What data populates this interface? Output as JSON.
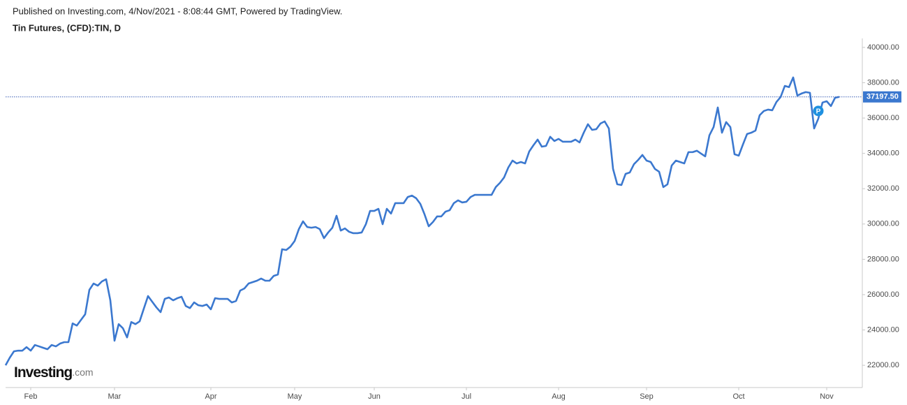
{
  "header": {
    "published": "Published on Investing.com, 4/Nov/2021 - 8:08:44 GMT, Powered by TradingView."
  },
  "logo": {
    "name": "Investing",
    "suffix": ".com"
  },
  "chart_data": {
    "type": "line",
    "title": "Tin Futures, (CFD):TIN, D",
    "color": "#3b78cf",
    "grid": false,
    "ylim": [
      20740,
      40510
    ],
    "yticks": [
      {
        "value": 22000,
        "label": "22000.00"
      },
      {
        "value": 24000,
        "label": "24000.00"
      },
      {
        "value": 26000,
        "label": "26000.00"
      },
      {
        "value": 28000,
        "label": "28000.00"
      },
      {
        "value": 30000,
        "label": "30000.00"
      },
      {
        "value": 32000,
        "label": "32000.00"
      },
      {
        "value": 34000,
        "label": "34000.00"
      },
      {
        "value": 36000,
        "label": "36000.00"
      },
      {
        "value": 38000,
        "label": "38000.00"
      },
      {
        "value": 40000,
        "label": "40000.00"
      }
    ],
    "last_price": {
      "value": 37197.5,
      "label": "37197.50"
    },
    "marker": {
      "index": 194,
      "label": "P"
    },
    "categories": [
      null,
      null,
      null,
      null,
      null,
      null,
      "Feb",
      null,
      null,
      null,
      null,
      null,
      null,
      null,
      null,
      null,
      null,
      null,
      null,
      null,
      null,
      null,
      null,
      null,
      null,
      null,
      "Mar",
      null,
      null,
      null,
      null,
      null,
      null,
      null,
      null,
      null,
      null,
      null,
      null,
      null,
      null,
      null,
      null,
      null,
      null,
      null,
      null,
      null,
      null,
      "Apr",
      null,
      null,
      null,
      null,
      null,
      null,
      null,
      null,
      null,
      null,
      null,
      null,
      null,
      null,
      null,
      null,
      null,
      null,
      null,
      "May",
      null,
      null,
      null,
      null,
      null,
      null,
      null,
      null,
      null,
      null,
      null,
      null,
      null,
      null,
      null,
      null,
      null,
      null,
      "Jun",
      null,
      null,
      null,
      null,
      null,
      null,
      null,
      null,
      null,
      null,
      null,
      null,
      null,
      null,
      null,
      null,
      null,
      null,
      null,
      null,
      null,
      "Jul",
      null,
      null,
      null,
      null,
      null,
      null,
      null,
      null,
      null,
      null,
      null,
      null,
      null,
      null,
      null,
      null,
      null,
      null,
      null,
      null,
      null,
      "Aug",
      null,
      null,
      null,
      null,
      null,
      null,
      null,
      null,
      null,
      null,
      null,
      null,
      null,
      null,
      null,
      null,
      null,
      null,
      null,
      null,
      "Sep",
      null,
      null,
      null,
      null,
      null,
      null,
      null,
      null,
      null,
      null,
      null,
      null,
      null,
      null,
      null,
      null,
      null,
      null,
      null,
      null,
      null,
      "Oct",
      null,
      null,
      null,
      null,
      null,
      null,
      null,
      null,
      null,
      null,
      null,
      null,
      null,
      null,
      null,
      null,
      null,
      null,
      null,
      null,
      "Nov",
      null,
      null,
      null
    ],
    "values": [
      22000,
      22430,
      22790,
      22830,
      22830,
      23030,
      22830,
      23150,
      23070,
      22990,
      22910,
      23150,
      23070,
      23230,
      23310,
      23310,
      24370,
      24250,
      24570,
      24890,
      26270,
      26630,
      26510,
      26750,
      26870,
      25680,
      23390,
      24330,
      24100,
      23580,
      24450,
      24330,
      24490,
      25210,
      25920,
      25600,
      25280,
      25010,
      25760,
      25840,
      25680,
      25800,
      25880,
      25360,
      25240,
      25560,
      25400,
      25360,
      25440,
      25170,
      25800,
      25760,
      25760,
      25760,
      25560,
      25640,
      26230,
      26350,
      26630,
      26710,
      26790,
      26910,
      26790,
      26790,
      27060,
      27140,
      28570,
      28530,
      28720,
      29040,
      29710,
      30150,
      29830,
      29790,
      29830,
      29710,
      29200,
      29520,
      29790,
      30470,
      29630,
      29750,
      29560,
      29480,
      29480,
      29520,
      29990,
      30740,
      30740,
      30860,
      29990,
      30860,
      30590,
      31180,
      31180,
      31180,
      31530,
      31610,
      31460,
      31140,
      30550,
      29870,
      30110,
      30430,
      30430,
      30700,
      30780,
      31180,
      31340,
      31220,
      31260,
      31530,
      31650,
      31650,
      31650,
      31650,
      31650,
      32090,
      32330,
      32640,
      33200,
      33590,
      33430,
      33510,
      33430,
      34110,
      34460,
      34780,
      34380,
      34420,
      34940,
      34700,
      34820,
      34660,
      34660,
      34660,
      34780,
      34620,
      35170,
      35650,
      35330,
      35370,
      35690,
      35810,
      35410,
      33120,
      32250,
      32210,
      32840,
      32920,
      33390,
      33630,
      33910,
      33590,
      33510,
      33120,
      32960,
      32090,
      32250,
      33310,
      33590,
      33510,
      33430,
      34070,
      34070,
      34150,
      33990,
      33830,
      35020,
      35490,
      36600,
      35170,
      35770,
      35490,
      33950,
      33870,
      34500,
      35100,
      35170,
      35290,
      36160,
      36400,
      36480,
      36440,
      36910,
      37190,
      37820,
      37750,
      38300,
      37270,
      37390,
      37470,
      37430,
      35410,
      35970,
      36880,
      36950,
      36680,
      37150,
      37197.5
    ]
  }
}
